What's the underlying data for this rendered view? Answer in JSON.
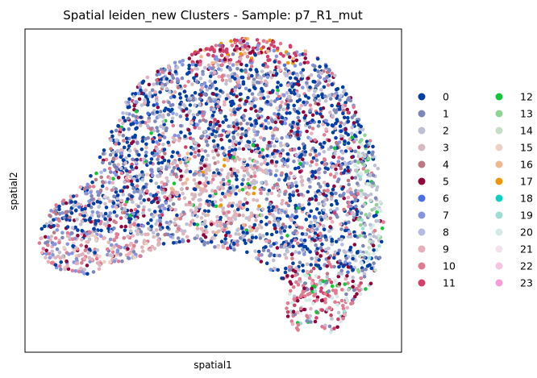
{
  "chart_data": {
    "type": "scatter",
    "title": "Spatial leiden_new Clusters - Sample: p7_R1_mut",
    "xlabel": "spatial1",
    "ylabel": "spatial2",
    "xticks": [],
    "yticks": [],
    "grid": false,
    "legend_placement": "right, outside plot, two columns",
    "categories": [
      "0",
      "1",
      "2",
      "3",
      "4",
      "5",
      "6",
      "7",
      "8",
      "9",
      "10",
      "11",
      "12",
      "13",
      "14",
      "15",
      "16",
      "17",
      "18",
      "19",
      "20",
      "21",
      "22",
      "23"
    ],
    "colors": [
      "#023fa5",
      "#7d87b9",
      "#bec1d4",
      "#d6bcc0",
      "#bb7784",
      "#8e063b",
      "#4a6fe3",
      "#8595e1",
      "#b5bbe3",
      "#e6afb9",
      "#e07b91",
      "#d33f6a",
      "#11c638",
      "#8dd593",
      "#c6dec7",
      "#ead3c6",
      "#f0b98d",
      "#ef9708",
      "#0fcfc0",
      "#9cded6",
      "#d5eae7",
      "#f3e1eb",
      "#f6c4e1",
      "#f79cd4"
    ],
    "points_note": "several thousand spatial spots; positions reproduced approximately by region density"
  }
}
